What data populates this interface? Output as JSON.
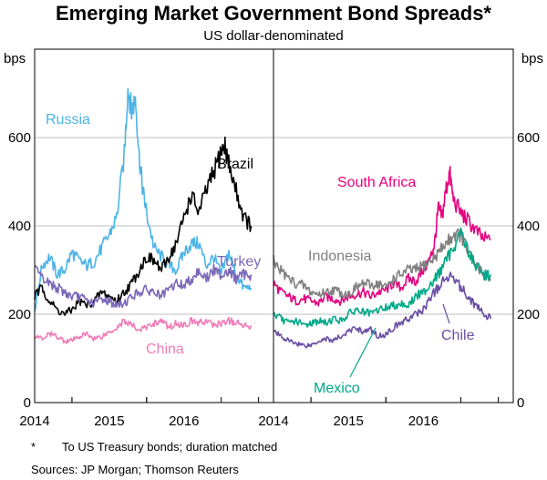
{
  "chart_data": {
    "type": "line",
    "title": "Emerging Market Government Bond Spreads*",
    "subtitle": "US dollar-denominated",
    "ylabel_left": "bps",
    "ylabel_right": "bps",
    "ylim": [
      0,
      800
    ],
    "yticks": [
      "0",
      "200",
      "400",
      "600"
    ],
    "grid": true,
    "xlim": [
      2013.5,
      2016.7
    ],
    "xticks": [
      "2014",
      "2015",
      "2016"
    ],
    "colors": {
      "russia": "#4cb4e7",
      "brazil": "#000000",
      "turkey": "#7b68b8",
      "china": "#f07cb8",
      "south_africa": "#e5007e",
      "indonesia": "#808080",
      "mexico": "#00a888",
      "chile": "#6a4ea4",
      "grid": "#bfbfbf",
      "axis": "#000000"
    },
    "panels": [
      {
        "id": "left",
        "series": [
          {
            "name": "Russia",
            "key": "russia",
            "x": [
              2013.5,
              2013.6,
              2013.7,
              2013.8,
              2013.9,
              2014.0,
              2014.1,
              2014.2,
              2014.3,
              2014.4,
              2014.5,
              2014.6,
              2014.7,
              2014.75,
              2014.8,
              2014.85,
              2014.9,
              2014.95,
              2015.0,
              2015.1,
              2015.2,
              2015.3,
              2015.4,
              2015.5,
              2015.6,
              2015.7,
              2015.8,
              2015.9,
              2016.0,
              2016.1,
              2016.2,
              2016.3,
              2016.4
            ],
            "values": [
              210,
              310,
              330,
              290,
              300,
              340,
              320,
              310,
              320,
              350,
              380,
              420,
              560,
              710,
              660,
              690,
              560,
              480,
              430,
              350,
              330,
              310,
              300,
              340,
              360,
              360,
              310,
              330,
              290,
              340,
              290,
              260,
              260
            ]
          },
          {
            "name": "Brazil",
            "key": "brazil",
            "x": [
              2013.5,
              2013.6,
              2013.7,
              2013.8,
              2013.9,
              2014.0,
              2014.1,
              2014.2,
              2014.3,
              2014.4,
              2014.5,
              2014.6,
              2014.7,
              2014.8,
              2014.9,
              2015.0,
              2015.1,
              2015.2,
              2015.3,
              2015.4,
              2015.5,
              2015.6,
              2015.7,
              2015.8,
              2015.9,
              2016.0,
              2016.05,
              2016.1,
              2016.2,
              2016.3,
              2016.4
            ],
            "values": [
              240,
              260,
              230,
              210,
              200,
              210,
              230,
              220,
              230,
              250,
              240,
              230,
              250,
              270,
              300,
              330,
              320,
              300,
              330,
              360,
              420,
              470,
              430,
              480,
              520,
              570,
              580,
              540,
              480,
              420,
              400
            ]
          },
          {
            "name": "Turkey",
            "key": "turkey",
            "x": [
              2013.5,
              2013.6,
              2013.7,
              2013.8,
              2013.9,
              2014.0,
              2014.1,
              2014.2,
              2014.3,
              2014.4,
              2014.5,
              2014.6,
              2014.7,
              2014.8,
              2014.9,
              2015.0,
              2015.1,
              2015.2,
              2015.3,
              2015.4,
              2015.5,
              2015.6,
              2015.7,
              2015.8,
              2015.9,
              2016.0,
              2016.1,
              2016.2,
              2016.3,
              2016.4
            ],
            "values": [
              300,
              280,
              270,
              260,
              250,
              240,
              240,
              230,
              225,
              235,
              230,
              220,
              225,
              240,
              250,
              255,
              250,
              240,
              255,
              270,
              265,
              280,
              300,
              280,
              300,
              290,
              300,
              280,
              290,
              290
            ]
          },
          {
            "name": "China",
            "key": "china",
            "x": [
              2013.5,
              2013.6,
              2013.7,
              2013.8,
              2013.9,
              2014.0,
              2014.1,
              2014.2,
              2014.3,
              2014.4,
              2014.5,
              2014.6,
              2014.7,
              2014.8,
              2014.9,
              2015.0,
              2015.1,
              2015.2,
              2015.3,
              2015.4,
              2015.5,
              2015.6,
              2015.7,
              2015.8,
              2015.9,
              2016.0,
              2016.1,
              2016.2,
              2016.3,
              2016.4
            ],
            "values": [
              150,
              145,
              155,
              150,
              140,
              140,
              150,
              155,
              145,
              150,
              160,
              170,
              185,
              175,
              165,
              170,
              180,
              185,
              170,
              180,
              175,
              185,
              180,
              185,
              175,
              180,
              185,
              180,
              175,
              175
            ]
          }
        ],
        "labels": [
          {
            "text": "Russia",
            "key": "russia"
          },
          {
            "text": "Brazil",
            "key": "brazil"
          },
          {
            "text": "Turkey",
            "key": "turkey"
          },
          {
            "text": "China",
            "key": "china"
          }
        ]
      },
      {
        "id": "right",
        "series": [
          {
            "name": "South Africa",
            "key": "south_africa",
            "x": [
              2013.5,
              2013.6,
              2013.7,
              2013.8,
              2013.9,
              2014.0,
              2014.1,
              2014.2,
              2014.3,
              2014.4,
              2014.5,
              2014.6,
              2014.7,
              2014.8,
              2014.9,
              2015.0,
              2015.1,
              2015.2,
              2015.3,
              2015.4,
              2015.5,
              2015.6,
              2015.65,
              2015.7,
              2015.75,
              2015.8,
              2015.85,
              2015.9,
              2016.0,
              2016.1,
              2016.2,
              2016.3,
              2016.4
            ],
            "values": [
              270,
              250,
              240,
              230,
              235,
              230,
              225,
              240,
              235,
              230,
              240,
              245,
              250,
              240,
              250,
              255,
              270,
              260,
              280,
              275,
              300,
              330,
              360,
              440,
              420,
              480,
              520,
              460,
              430,
              410,
              390,
              370,
              370
            ]
          },
          {
            "name": "Indonesia",
            "key": "indonesia",
            "x": [
              2013.5,
              2013.6,
              2013.7,
              2013.8,
              2013.9,
              2014.0,
              2014.1,
              2014.2,
              2014.3,
              2014.4,
              2014.5,
              2014.6,
              2014.7,
              2014.8,
              2014.9,
              2015.0,
              2015.1,
              2015.2,
              2015.3,
              2015.4,
              2015.5,
              2015.6,
              2015.7,
              2015.8,
              2015.9,
              2016.0,
              2016.1,
              2016.2,
              2016.3,
              2016.4
            ],
            "values": [
              320,
              300,
              280,
              270,
              265,
              250,
              245,
              250,
              255,
              250,
              245,
              260,
              270,
              265,
              270,
              260,
              280,
              290,
              300,
              300,
              310,
              320,
              340,
              360,
              380,
              380,
              340,
              310,
              290,
              280
            ]
          },
          {
            "name": "Mexico",
            "key": "mexico",
            "x": [
              2013.5,
              2013.6,
              2013.7,
              2013.8,
              2013.9,
              2014.0,
              2014.1,
              2014.2,
              2014.3,
              2014.4,
              2014.5,
              2014.6,
              2014.7,
              2014.8,
              2014.9,
              2015.0,
              2015.1,
              2015.2,
              2015.3,
              2015.4,
              2015.5,
              2015.6,
              2015.7,
              2015.8,
              2015.9,
              2016.0,
              2016.1,
              2016.2,
              2016.3,
              2016.4
            ],
            "values": [
              200,
              190,
              180,
              185,
              175,
              180,
              185,
              180,
              190,
              185,
              200,
              210,
              205,
              200,
              210,
              215,
              220,
              225,
              220,
              240,
              250,
              270,
              290,
              320,
              350,
              390,
              340,
              310,
              290,
              290
            ]
          },
          {
            "name": "Chile",
            "key": "chile",
            "x": [
              2013.5,
              2013.6,
              2013.7,
              2013.8,
              2013.9,
              2014.0,
              2014.1,
              2014.2,
              2014.3,
              2014.4,
              2014.5,
              2014.6,
              2014.7,
              2014.8,
              2014.9,
              2015.0,
              2015.1,
              2015.2,
              2015.3,
              2015.4,
              2015.5,
              2015.6,
              2015.7,
              2015.8,
              2015.9,
              2016.0,
              2016.1,
              2016.2,
              2016.3,
              2016.4
            ],
            "values": [
              160,
              150,
              140,
              135,
              130,
              130,
              140,
              145,
              140,
              150,
              160,
              170,
              160,
              165,
              150,
              155,
              170,
              180,
              190,
              200,
              210,
              240,
              260,
              280,
              290,
              260,
              240,
              220,
              200,
              190
            ]
          }
        ],
        "labels": [
          {
            "text": "South Africa",
            "key": "south_africa"
          },
          {
            "text": "Indonesia",
            "key": "indonesia"
          },
          {
            "text": "Mexico",
            "key": "mexico"
          },
          {
            "text": "Chile",
            "key": "chile"
          }
        ]
      }
    ]
  },
  "footnote": {
    "marker": "*",
    "text": "To US Treasury bonds; duration matched"
  },
  "sources": "Sources:   JP Morgan; Thomson Reuters"
}
